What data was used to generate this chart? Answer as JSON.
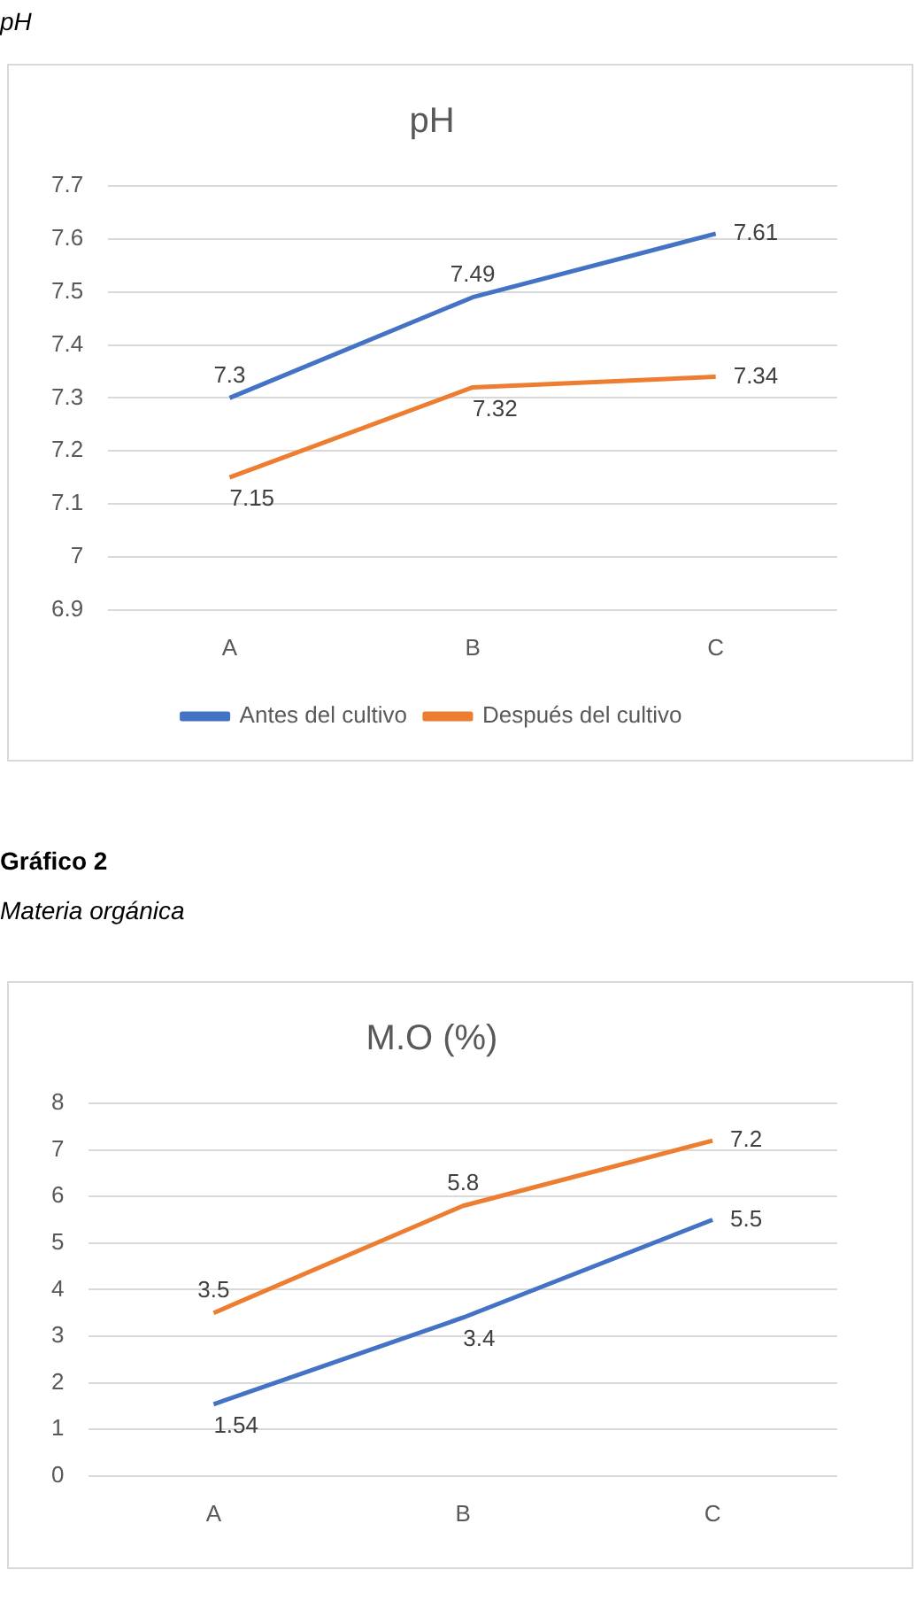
{
  "chart_data": [
    {
      "type": "line",
      "title": "pH",
      "annotations": [
        "pH"
      ],
      "categories": [
        "A",
        "B",
        "C"
      ],
      "series": [
        {
          "name": "Antes del cultivo",
          "color": "#4472c4",
          "values": [
            7.3,
            7.49,
            7.61
          ]
        },
        {
          "name": "Después del cultivo",
          "color": "#ed7d31",
          "values": [
            7.15,
            7.32,
            7.34
          ]
        }
      ],
      "ylim": [
        6.9,
        7.7
      ],
      "yticks": [
        6.9,
        7,
        7.1,
        7.2,
        7.3,
        7.4,
        7.5,
        7.6,
        7.7
      ],
      "grid": "y",
      "legend": "bottom",
      "marker": "none",
      "data_labels": true
    },
    {
      "type": "line",
      "title": "M.O (%)",
      "annotations": [
        "Gráfico  2",
        "Materia orgánica"
      ],
      "categories": [
        "A",
        "B",
        "C"
      ],
      "series": [
        {
          "color": "#4472c4",
          "values": [
            1.54,
            3.4,
            5.5
          ]
        },
        {
          "color": "#ed7d31",
          "values": [
            3.5,
            5.8,
            7.2
          ]
        }
      ],
      "ylim": [
        0,
        8
      ],
      "yticks": [
        0,
        1,
        2,
        3,
        4,
        5,
        6,
        7,
        8
      ],
      "grid": "y",
      "marker": "none",
      "data_labels": true
    }
  ]
}
